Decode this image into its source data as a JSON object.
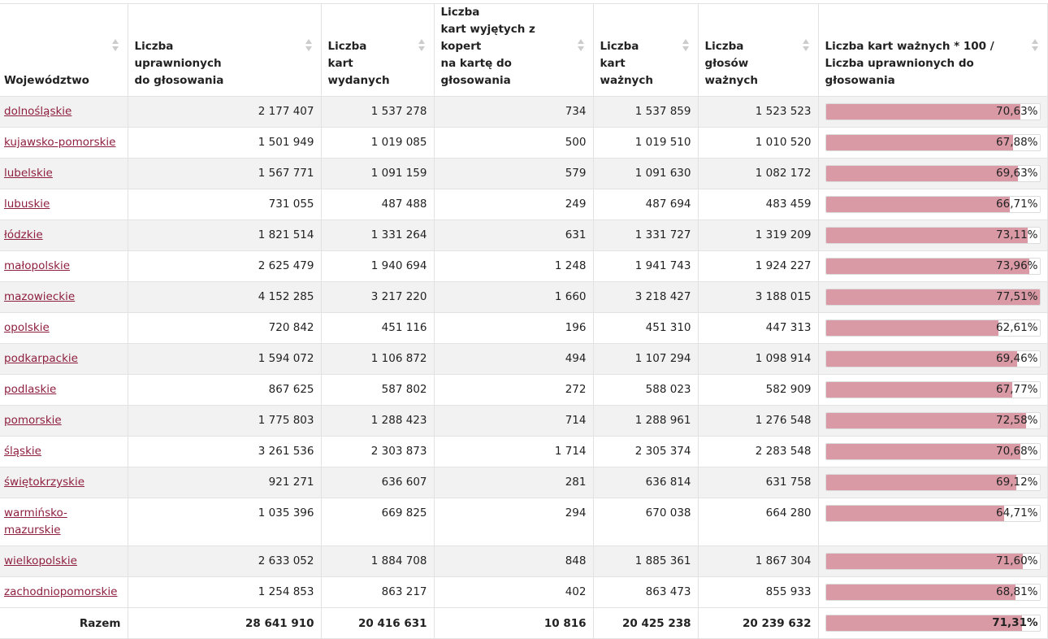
{
  "table": {
    "columns": [
      "Województwo",
      "Liczba\nuprawnionych\ndo głosowania",
      "Liczba\nkart\nwydanych",
      "Liczba\nkart wyjętych z kopert\nna kartę do\ngłosowania",
      "Liczba\nkart\nważnych",
      "Liczba\ngłosów\nważnych",
      "Liczba kart ważnych * 100 /\nLiczba uprawnionych do\ngłosowania"
    ],
    "rows": [
      {
        "name": "dolnośląskie",
        "eligible": "2 177 407",
        "issued": "1 537 278",
        "envelopes": "734",
        "valid_cards": "1 537 859",
        "valid_votes": "1 523 523",
        "pct_label": "70,63%",
        "pct": 70.63
      },
      {
        "name": "kujawsko-pomorskie",
        "eligible": "1 501 949",
        "issued": "1 019 085",
        "envelopes": "500",
        "valid_cards": "1 019 510",
        "valid_votes": "1 010 520",
        "pct_label": "67,88%",
        "pct": 67.88
      },
      {
        "name": "lubelskie",
        "eligible": "1 567 771",
        "issued": "1 091 159",
        "envelopes": "579",
        "valid_cards": "1 091 630",
        "valid_votes": "1 082 172",
        "pct_label": "69,63%",
        "pct": 69.63
      },
      {
        "name": "lubuskie",
        "eligible": "731 055",
        "issued": "487 488",
        "envelopes": "249",
        "valid_cards": "487 694",
        "valid_votes": "483 459",
        "pct_label": "66,71%",
        "pct": 66.71
      },
      {
        "name": "łódzkie",
        "eligible": "1 821 514",
        "issued": "1 331 264",
        "envelopes": "631",
        "valid_cards": "1 331 727",
        "valid_votes": "1 319 209",
        "pct_label": "73,11%",
        "pct": 73.11
      },
      {
        "name": "małopolskie",
        "eligible": "2 625 479",
        "issued": "1 940 694",
        "envelopes": "1 248",
        "valid_cards": "1 941 743",
        "valid_votes": "1 924 227",
        "pct_label": "73,96%",
        "pct": 73.96
      },
      {
        "name": "mazowieckie",
        "eligible": "4 152 285",
        "issued": "3 217 220",
        "envelopes": "1 660",
        "valid_cards": "3 218 427",
        "valid_votes": "3 188 015",
        "pct_label": "77,51%",
        "pct": 77.51
      },
      {
        "name": "opolskie",
        "eligible": "720 842",
        "issued": "451 116",
        "envelopes": "196",
        "valid_cards": "451 310",
        "valid_votes": "447 313",
        "pct_label": "62,61%",
        "pct": 62.61
      },
      {
        "name": "podkarpackie",
        "eligible": "1 594 072",
        "issued": "1 106 872",
        "envelopes": "494",
        "valid_cards": "1 107 294",
        "valid_votes": "1 098 914",
        "pct_label": "69,46%",
        "pct": 69.46
      },
      {
        "name": "podlaskie",
        "eligible": "867 625",
        "issued": "587 802",
        "envelopes": "272",
        "valid_cards": "588 023",
        "valid_votes": "582 909",
        "pct_label": "67,77%",
        "pct": 67.77
      },
      {
        "name": "pomorskie",
        "eligible": "1 775 803",
        "issued": "1 288 423",
        "envelopes": "714",
        "valid_cards": "1 288 961",
        "valid_votes": "1 276 548",
        "pct_label": "72,58%",
        "pct": 72.58
      },
      {
        "name": "śląskie",
        "eligible": "3 261 536",
        "issued": "2 303 873",
        "envelopes": "1 714",
        "valid_cards": "2 305 374",
        "valid_votes": "2 283 548",
        "pct_label": "70,68%",
        "pct": 70.68
      },
      {
        "name": "świętokrzyskie",
        "eligible": "921 271",
        "issued": "636 607",
        "envelopes": "281",
        "valid_cards": "636 814",
        "valid_votes": "631 758",
        "pct_label": "69,12%",
        "pct": 69.12
      },
      {
        "name": "warmińsko-\nmazurskie",
        "eligible": "1 035 396",
        "issued": "669 825",
        "envelopes": "294",
        "valid_cards": "670 038",
        "valid_votes": "664 280",
        "pct_label": "64,71%",
        "pct": 64.71
      },
      {
        "name": "wielkopolskie",
        "eligible": "2 633 052",
        "issued": "1 884 708",
        "envelopes": "848",
        "valid_cards": "1 885 361",
        "valid_votes": "1 867 304",
        "pct_label": "71,60%",
        "pct": 71.6
      },
      {
        "name": "zachodniopomorskie",
        "eligible": "1 254 853",
        "issued": "863 217",
        "envelopes": "402",
        "valid_cards": "863 473",
        "valid_votes": "855 933",
        "pct_label": "68,81%",
        "pct": 68.81
      }
    ],
    "total": {
      "label": "Razem",
      "eligible": "28 641 910",
      "issued": "20 416 631",
      "envelopes": "10 816",
      "valid_cards": "20 425 238",
      "valid_votes": "20 239 632",
      "pct_label": "71,31%",
      "pct": 71.31
    },
    "pct_scale_max": 77.51,
    "colors": {
      "link": "#8e1f3f",
      "bar_fill": "#d99aa5",
      "row_stripe": "#f2f2f2",
      "sort_icon": "#cccccc"
    },
    "icons": {
      "sort": "sort-arrows-icon"
    }
  }
}
